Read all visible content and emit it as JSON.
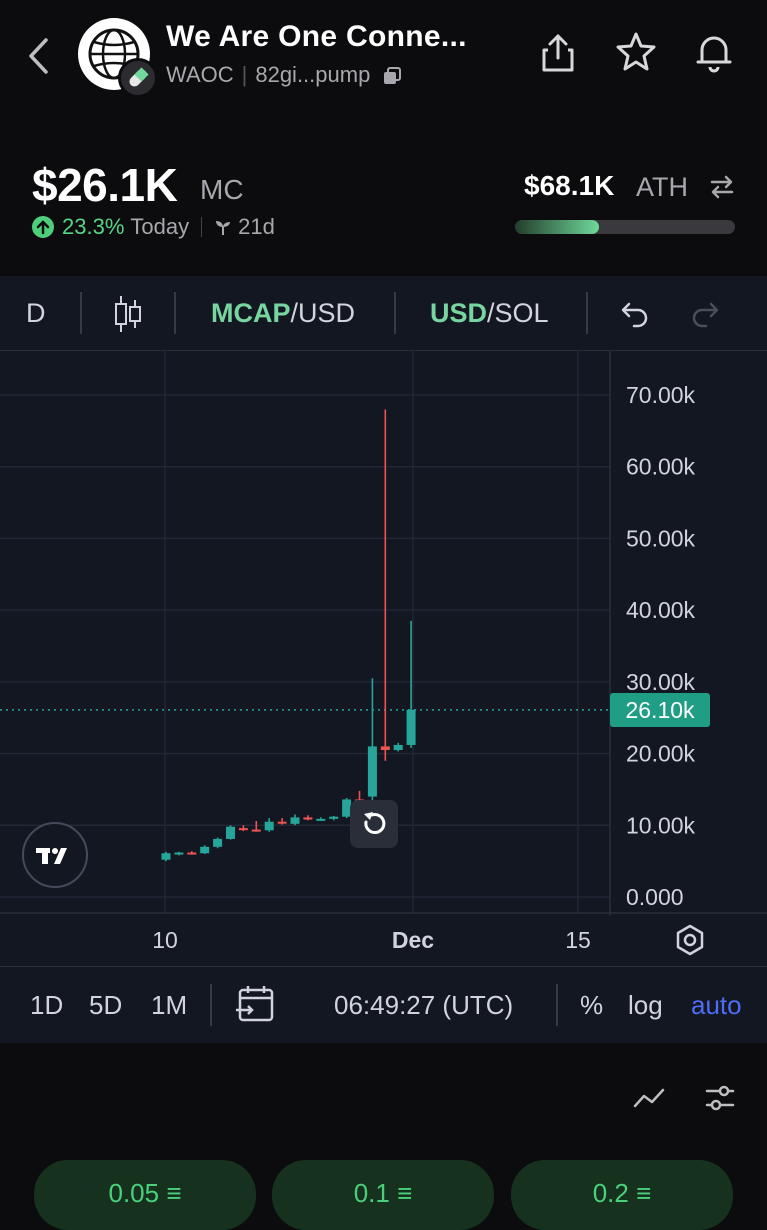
{
  "header": {
    "title": "We Are One Conne...",
    "ticker": "WAOC",
    "address": "82gi...pump"
  },
  "market": {
    "mc_value": "$26.1K",
    "mc_label": "MC",
    "change_pct": "23.3%",
    "change_period": "Today",
    "age": "21d",
    "ath_value": "$68.1K",
    "ath_label": "ATH",
    "ath_progress": 0.38,
    "colors": {
      "up": "#57d585",
      "accent_blue": "#4d6df5"
    }
  },
  "toolbar": {
    "interval": "D",
    "mcap_label": "MCAP",
    "mcap_suffix": "/USD",
    "usd_label": "USD",
    "usd_suffix": "/SOL"
  },
  "bottombar": {
    "range_1d": "1D",
    "range_5d": "5D",
    "range_1m": "1M",
    "time": "06:49:27 (UTC)",
    "percent": "%",
    "log": "log",
    "auto": "auto"
  },
  "amounts": [
    "0.05",
    "0.1",
    "0.2"
  ],
  "chart_data": {
    "type": "candlestick",
    "y_ticks": [
      "70.00k",
      "60.00k",
      "50.00k",
      "40.00k",
      "30.00k",
      "20.00k",
      "10.00k",
      "0.000"
    ],
    "x_ticks": [
      "10",
      "Dec",
      "15"
    ],
    "ylim": [
      0,
      75000
    ],
    "current_price_label": "26.10k",
    "current_price": 26100,
    "colors": {
      "up": "#26a69a",
      "down": "#ef5350"
    },
    "candles": [
      {
        "o": 5200,
        "h": 6300,
        "l": 5000,
        "c": 6100
      },
      {
        "o": 6000,
        "h": 6300,
        "l": 5800,
        "c": 6200
      },
      {
        "o": 6200,
        "h": 6400,
        "l": 5900,
        "c": 6100
      },
      {
        "o": 6100,
        "h": 7200,
        "l": 6000,
        "c": 7000
      },
      {
        "o": 7000,
        "h": 8300,
        "l": 6800,
        "c": 8100
      },
      {
        "o": 8100,
        "h": 10000,
        "l": 8000,
        "c": 9800
      },
      {
        "o": 9600,
        "h": 10000,
        "l": 9200,
        "c": 9400
      },
      {
        "o": 9400,
        "h": 10600,
        "l": 9100,
        "c": 9300
      },
      {
        "o": 9300,
        "h": 11000,
        "l": 9100,
        "c": 10500
      },
      {
        "o": 10500,
        "h": 11000,
        "l": 10100,
        "c": 10300
      },
      {
        "o": 10200,
        "h": 11500,
        "l": 10000,
        "c": 11100
      },
      {
        "o": 11100,
        "h": 11400,
        "l": 10700,
        "c": 10800
      },
      {
        "o": 10800,
        "h": 11100,
        "l": 10600,
        "c": 10900
      },
      {
        "o": 10900,
        "h": 11300,
        "l": 10700,
        "c": 11200
      },
      {
        "o": 11200,
        "h": 13800,
        "l": 11000,
        "c": 13600
      },
      {
        "o": 13600,
        "h": 14800,
        "l": 12000,
        "c": 12500
      },
      {
        "o": 14000,
        "h": 30500,
        "l": 13500,
        "c": 21000
      },
      {
        "o": 21000,
        "h": 68000,
        "l": 19000,
        "c": 20500
      },
      {
        "o": 20500,
        "h": 21500,
        "l": 20300,
        "c": 21200
      },
      {
        "o": 21200,
        "h": 38500,
        "l": 20800,
        "c": 26100
      }
    ]
  }
}
